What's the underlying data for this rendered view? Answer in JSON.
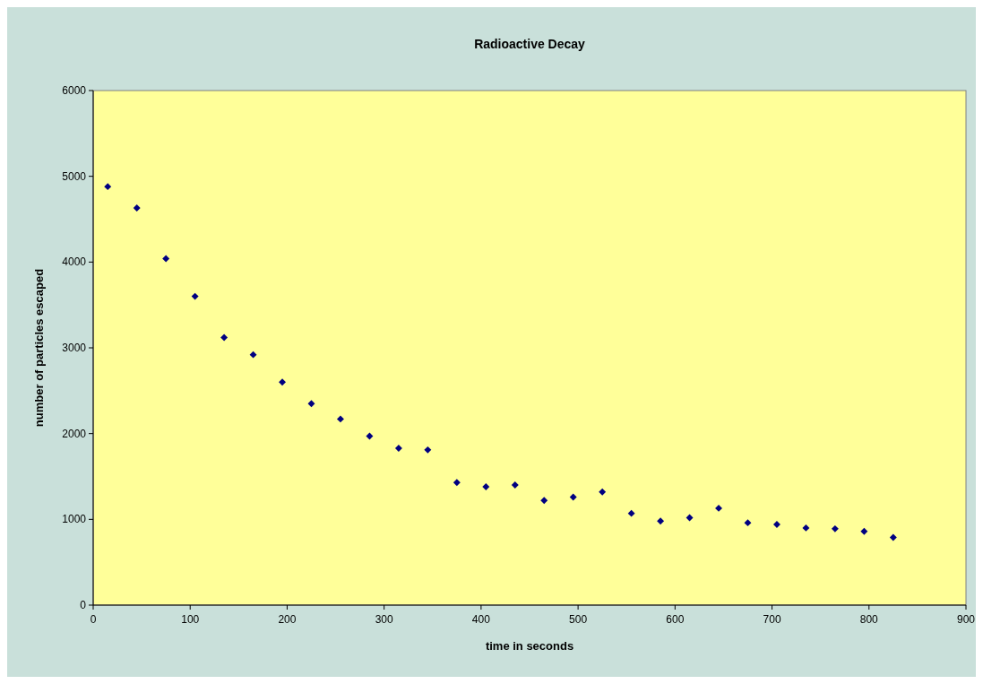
{
  "chart_data": {
    "type": "scatter",
    "title": "Radioactive Decay",
    "xlabel": "time in seconds",
    "ylabel": "number of particles escaped",
    "x": [
      15,
      45,
      75,
      105,
      135,
      165,
      195,
      225,
      255,
      285,
      315,
      345,
      375,
      405,
      435,
      465,
      495,
      525,
      555,
      585,
      615,
      645,
      675,
      705,
      735,
      765,
      795,
      825
    ],
    "series": [
      {
        "color": "#000080",
        "values": [
          4880,
          4630,
          4040,
          3600,
          3120,
          2920,
          2600,
          2350,
          2170,
          1970,
          1830,
          1810,
          1430,
          1380,
          1400,
          1220,
          1260,
          1320,
          1070,
          980,
          1020,
          1130,
          960,
          940,
          900,
          890,
          860,
          790
        ]
      }
    ],
    "xlim": [
      0,
      900
    ],
    "xticks": [
      0,
      100,
      200,
      300,
      400,
      500,
      600,
      700,
      800,
      900
    ],
    "ylim": [
      0,
      6000
    ],
    "yticks": [
      0,
      1000,
      2000,
      3000,
      4000,
      5000,
      6000
    ],
    "grid": false,
    "marker": "diamond"
  }
}
